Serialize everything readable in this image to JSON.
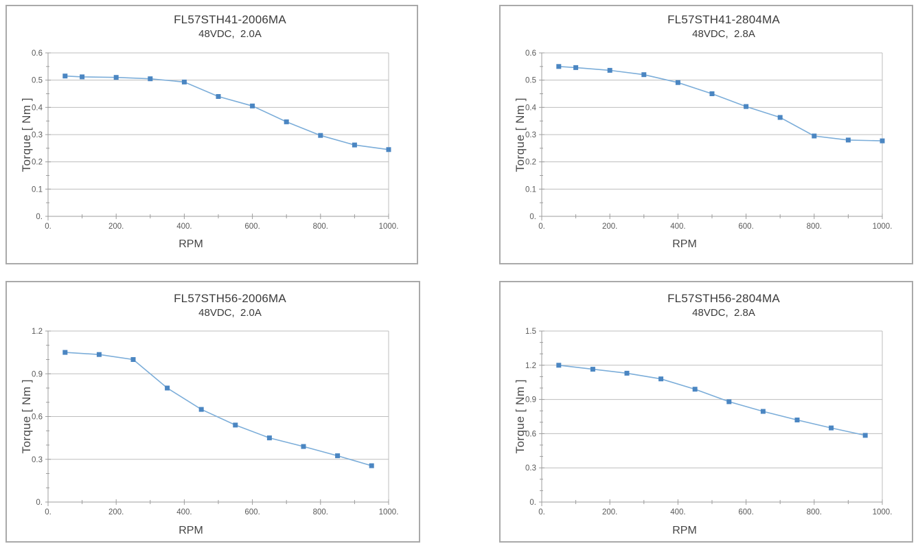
{
  "page": {
    "background": "#ffffff",
    "panel_border_color": "#a9a9a9"
  },
  "colors": {
    "marker": "#4b86c2",
    "line": "#7badd9",
    "grid": "#bdbdbd",
    "axis": "#9c9c9c",
    "tick_label": "#595959",
    "title_text": "#3a3a3a"
  },
  "chart_data": [
    {
      "type": "line",
      "title": "FL57STH41-2006MA",
      "subtitle": "48VDC,  2.0A",
      "xlabel": "RPM",
      "ylabel": "Torque [ Nm ]",
      "x": [
        50,
        100,
        200,
        300,
        400,
        500,
        600,
        700,
        800,
        900,
        1000
      ],
      "y": [
        0.515,
        0.512,
        0.51,
        0.505,
        0.493,
        0.44,
        0.405,
        0.347,
        0.297,
        0.262,
        0.245
      ],
      "xlim": [
        0,
        1000
      ],
      "ylim": [
        0,
        0.6
      ],
      "x_major_ticks": [
        0,
        200,
        400,
        600,
        800,
        1000
      ],
      "x_tick_labels": [
        "0.",
        "200.",
        "400.",
        "600.",
        "800.",
        "1000."
      ],
      "x_minor_step": 100,
      "y_major_ticks": [
        0,
        0.1,
        0.2,
        0.3,
        0.4,
        0.5,
        0.6
      ],
      "y_tick_labels": [
        "0.",
        "0.1",
        "0.2",
        "0.3",
        "0.4",
        "0.5",
        "0.6"
      ],
      "y_minor_step": 0.05,
      "grid": "horizontal-major-with-top-and-right-frame",
      "legend": "none",
      "marker": "square"
    },
    {
      "type": "line",
      "title": "FL57STH41-2804MA",
      "subtitle": "48VDC,  2.8A",
      "xlabel": "RPM",
      "ylabel": "Torque [ Nm ]",
      "x": [
        50,
        100,
        200,
        300,
        400,
        500,
        600,
        700,
        800,
        900,
        1000
      ],
      "y": [
        0.55,
        0.546,
        0.536,
        0.52,
        0.491,
        0.45,
        0.403,
        0.363,
        0.295,
        0.28,
        0.277
      ],
      "xlim": [
        0,
        1000
      ],
      "ylim": [
        0,
        0.6
      ],
      "x_major_ticks": [
        0,
        200,
        400,
        600,
        800,
        1000
      ],
      "x_tick_labels": [
        "0.",
        "200.",
        "400.",
        "600.",
        "800.",
        "1000."
      ],
      "x_minor_step": 100,
      "y_major_ticks": [
        0,
        0.1,
        0.2,
        0.3,
        0.4,
        0.5,
        0.6
      ],
      "y_tick_labels": [
        "0.",
        "0.1",
        "0.2",
        "0.3",
        "0.4",
        "0.5",
        "0.6"
      ],
      "y_minor_step": 0.05,
      "grid": "horizontal-major-with-top-and-right-frame",
      "legend": "none",
      "marker": "square"
    },
    {
      "type": "line",
      "title": "FL57STH56-2006MA",
      "subtitle": "48VDC,  2.0A",
      "xlabel": "RPM",
      "ylabel": "Torque [ Nm ]",
      "x": [
        50,
        150,
        250,
        350,
        450,
        550,
        650,
        750,
        850,
        950
      ],
      "y": [
        1.05,
        1.035,
        1.0,
        0.8,
        0.65,
        0.54,
        0.45,
        0.39,
        0.325,
        0.255
      ],
      "xlim": [
        0,
        1000
      ],
      "ylim": [
        0,
        1.2
      ],
      "x_major_ticks": [
        0,
        200,
        400,
        600,
        800,
        1000
      ],
      "x_tick_labels": [
        "0.",
        "200.",
        "400.",
        "600.",
        "800.",
        "1000."
      ],
      "x_minor_step": 100,
      "y_major_ticks": [
        0,
        0.3,
        0.6,
        0.9,
        1.2
      ],
      "y_tick_labels": [
        "0.",
        "0.3",
        "0.6",
        "0.9",
        "1.2"
      ],
      "y_minor_step": 0.1,
      "grid": "horizontal-major-with-top-and-right-frame",
      "legend": "none",
      "marker": "square"
    },
    {
      "type": "line",
      "title": "FL57STH56-2804MA",
      "subtitle": "48VDC,  2.8A",
      "xlabel": "RPM",
      "ylabel": "Torque [ Nm ]",
      "x": [
        50,
        150,
        250,
        350,
        450,
        550,
        650,
        750,
        850,
        950
      ],
      "y": [
        1.2,
        1.165,
        1.13,
        1.08,
        0.99,
        0.88,
        0.795,
        0.72,
        0.65,
        0.585
      ],
      "xlim": [
        0,
        1000
      ],
      "ylim": [
        0,
        1.5
      ],
      "x_major_ticks": [
        0,
        200,
        400,
        600,
        800,
        1000
      ],
      "x_tick_labels": [
        "0.",
        "200.",
        "400.",
        "600.",
        "800.",
        "1000."
      ],
      "x_minor_step": 100,
      "y_major_ticks": [
        0,
        0.3,
        0.6,
        0.9,
        1.2,
        1.5
      ],
      "y_tick_labels": [
        "0.",
        "0.3",
        "0.6",
        "0.9",
        "1.2",
        "1.5"
      ],
      "y_minor_step": 0.1,
      "grid": "horizontal-major-with-top-and-right-frame",
      "legend": "none",
      "marker": "square"
    }
  ]
}
